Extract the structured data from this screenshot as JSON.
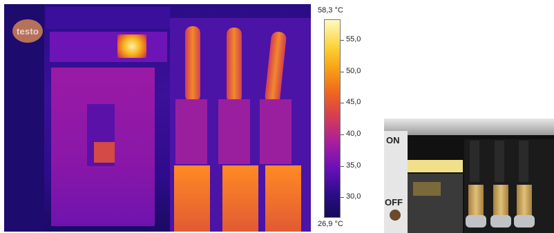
{
  "thermal_image": {
    "logo_text": "testo",
    "scale": {
      "max_label": "58,3 °C",
      "min_label": "26,9 °C",
      "ticks": [
        "55,0",
        "50,0",
        "45,0",
        "40,0",
        "35,0",
        "30,0"
      ]
    }
  },
  "photo": {
    "switch_on_label": "ON",
    "switch_off_label": "OFF"
  }
}
